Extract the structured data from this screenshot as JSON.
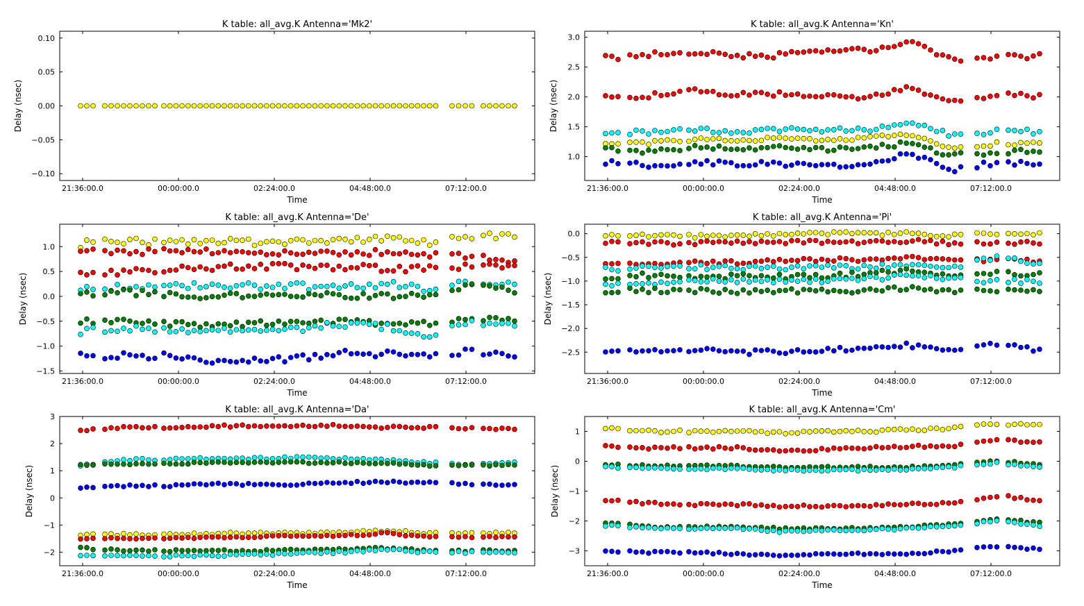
{
  "chart_data": [
    {
      "type": "scatter",
      "title": "K table: all_avg.K      Antenna='Mk2'",
      "xlabel": "Time",
      "ylabel": "Delay (nsec)",
      "xticks": [
        "21:36:00.0",
        "00:00:00.0",
        "02:24:00.0",
        "04:48:00.0",
        "07:12:00.0"
      ],
      "yticks": [
        "0.10",
        "0.05",
        "0.00",
        "−0.05",
        "−0.10"
      ],
      "ylim": [
        -0.11,
        0.11
      ],
      "series": [
        {
          "color": "#ffff00",
          "base": [
            0.0
          ],
          "amp": 0
        }
      ]
    },
    {
      "type": "scatter",
      "title": "K table: all_avg.K      Antenna='Kn'",
      "xlabel": "Time",
      "ylabel": "Delay (nsec)",
      "xticks": [
        "21:36:00.0",
        "00:00:00.0",
        "02:24:00.0",
        "04:48:00.0",
        "07:12:00.0"
      ],
      "yticks": [
        "3.0",
        "2.5",
        "2.0",
        "1.5",
        "1.0"
      ],
      "ylim": [
        0.6,
        3.1
      ],
      "series": [
        {
          "color": "#ff0000",
          "base": [
            2.65,
            2.7,
            2.75,
            2.7,
            2.7,
            2.75,
            2.78,
            2.95,
            2.6,
            2.65,
            2.7
          ],
          "amp": 0.05
        },
        {
          "color": "#ff0000",
          "base": [
            2.0,
            2.02,
            2.1,
            2.05,
            2.05,
            2.0,
            2.0,
            2.15,
            1.9,
            2.05,
            2.0
          ],
          "amp": 0.04
        },
        {
          "color": "#00ffff",
          "base": [
            1.42,
            1.4,
            1.45,
            1.42,
            1.45,
            1.45,
            1.45,
            1.58,
            1.35,
            1.42,
            1.42
          ],
          "amp": 0.04
        },
        {
          "color": "#ffff00",
          "base": [
            1.22,
            1.23,
            1.28,
            1.28,
            1.3,
            1.28,
            1.3,
            1.38,
            1.12,
            1.22,
            1.22
          ],
          "amp": 0.03
        },
        {
          "color": "#008000",
          "base": [
            1.12,
            1.08,
            1.15,
            1.15,
            1.15,
            1.12,
            1.15,
            1.22,
            1.02,
            1.08,
            1.1
          ],
          "amp": 0.04
        },
        {
          "color": "#0000ff",
          "base": [
            0.9,
            0.86,
            0.9,
            0.88,
            0.88,
            0.85,
            0.88,
            1.05,
            0.78,
            0.9,
            0.88
          ],
          "amp": 0.04
        }
      ]
    },
    {
      "type": "scatter",
      "title": "K table: all_avg.K      Antenna='De'",
      "xlabel": "Time",
      "ylabel": "Delay (nsec)",
      "xticks": [
        "21:36:00.0",
        "00:00:00.0",
        "02:24:00.0",
        "04:48:00.0",
        "07:12:00.0"
      ],
      "yticks": [
        "1.0",
        "0.5",
        "0.0",
        "−0.5",
        "−1.0",
        "−1.5"
      ],
      "ylim": [
        -1.55,
        1.45
      ],
      "series": [
        {
          "color": "#ffff00",
          "base": [
            1.05,
            1.1,
            1.1,
            1.15,
            1.1,
            1.12,
            1.15,
            1.15,
            1.1,
            1.2,
            1.2
          ],
          "amp": 0.08
        },
        {
          "color": "#ff0000",
          "base": [
            0.9,
            0.9,
            0.9,
            0.9,
            0.88,
            0.88,
            0.88,
            0.88,
            0.85,
            0.8,
            0.7
          ],
          "amp": 0.06
        },
        {
          "color": "#ff0000",
          "base": [
            0.5,
            0.5,
            0.55,
            0.58,
            0.58,
            0.6,
            0.6,
            0.55,
            0.55,
            0.6,
            0.55
          ],
          "amp": 0.07
        },
        {
          "color": "#00ffff",
          "base": [
            0.15,
            0.18,
            0.2,
            0.2,
            0.2,
            0.2,
            0.2,
            0.25,
            0.15,
            0.3,
            0.25
          ],
          "amp": 0.07
        },
        {
          "color": "#008000",
          "base": [
            0.05,
            0.08,
            0.05,
            0.0,
            0.0,
            0.0,
            0.02,
            0.0,
            0.0,
            0.25,
            0.1
          ],
          "amp": 0.06
        },
        {
          "color": "#008000",
          "base": [
            -0.5,
            -0.5,
            -0.55,
            -0.58,
            -0.55,
            -0.5,
            -0.5,
            -0.55,
            -0.55,
            -0.45,
            -0.5
          ],
          "amp": 0.05
        },
        {
          "color": "#00ffff",
          "base": [
            -0.7,
            -0.65,
            -0.65,
            -0.7,
            -0.72,
            -0.65,
            -0.55,
            -0.6,
            -0.8,
            -0.5,
            -0.62
          ],
          "amp": 0.07
        },
        {
          "color": "#0000ff",
          "base": [
            -1.2,
            -1.18,
            -1.2,
            -1.3,
            -1.3,
            -1.25,
            -1.15,
            -1.15,
            -1.2,
            -1.1,
            -1.18
          ],
          "amp": 0.07
        }
      ]
    },
    {
      "type": "scatter",
      "title": "K table: all_avg.K      Antenna='Pi'",
      "xlabel": "Time",
      "ylabel": "Delay (nsec)",
      "xticks": [
        "21:36:00.0",
        "00:00:00.0",
        "02:24:00.0",
        "04:48:00.0",
        "07:12:00.0"
      ],
      "yticks": [
        "0.0",
        "−0.5",
        "−1.0",
        "−1.5",
        "−2.0",
        "−2.5"
      ],
      "ylim": [
        -2.95,
        0.2
      ],
      "series": [
        {
          "color": "#ffff00",
          "base": [
            -0.05,
            -0.05,
            -0.05,
            -0.05,
            -0.02,
            0.0,
            0.0,
            0.0,
            -0.05,
            0.0,
            0.0
          ],
          "amp": 0.04
        },
        {
          "color": "#ff0000",
          "base": [
            -0.2,
            -0.2,
            -0.2,
            -0.18,
            -0.18,
            -0.18,
            -0.18,
            -0.15,
            -0.2,
            -0.2,
            -0.18
          ],
          "amp": 0.04
        },
        {
          "color": "#ff0000",
          "base": [
            -0.62,
            -0.62,
            -0.6,
            -0.6,
            -0.58,
            -0.55,
            -0.55,
            -0.5,
            -0.58,
            -0.55,
            -0.58
          ],
          "amp": 0.04
        },
        {
          "color": "#00ffff",
          "base": [
            -0.75,
            -0.72,
            -0.7,
            -0.72,
            -0.72,
            -0.7,
            -0.7,
            -0.65,
            -0.72,
            -0.5,
            -0.62
          ],
          "amp": 0.05
        },
        {
          "color": "#008000",
          "base": [
            -0.9,
            -0.88,
            -0.9,
            -0.9,
            -0.9,
            -0.88,
            -0.85,
            -0.8,
            -0.85,
            -0.85,
            -0.88
          ],
          "amp": 0.06
        },
        {
          "color": "#00ffff",
          "base": [
            -1.1,
            -1.05,
            -1.0,
            -1.0,
            -1.0,
            -0.98,
            -0.95,
            -0.9,
            -0.95,
            -1.0,
            -1.0
          ],
          "amp": 0.05
        },
        {
          "color": "#008000",
          "base": [
            -1.2,
            -1.2,
            -1.2,
            -1.22,
            -1.22,
            -1.2,
            -1.2,
            -1.15,
            -1.2,
            -1.22,
            -1.2
          ],
          "amp": 0.05
        },
        {
          "color": "#0000ff",
          "base": [
            -2.5,
            -2.5,
            -2.45,
            -2.5,
            -2.5,
            -2.45,
            -2.45,
            -2.35,
            -2.45,
            -2.35,
            -2.45
          ],
          "amp": 0.05
        }
      ]
    },
    {
      "type": "scatter",
      "title": "K table: all_avg.K      Antenna='Da'",
      "xlabel": "Time",
      "ylabel": "Delay (nsec)",
      "xticks": [
        "21:36:00.0",
        "00:00:00.0",
        "02:24:00.0",
        "04:48:00.0",
        "07:12:00.0"
      ],
      "yticks": [
        "3",
        "2",
        "1",
        "0",
        "−1",
        "−2"
      ],
      "ylim": [
        -2.5,
        3.0
      ],
      "series": [
        {
          "color": "#ff0000",
          "base": [
            2.5,
            2.6,
            2.6,
            2.65,
            2.65,
            2.65,
            2.68,
            2.6,
            2.6,
            2.55,
            2.55
          ],
          "amp": 0.04
        },
        {
          "color": "#00ffff",
          "base": [
            1.2,
            1.4,
            1.42,
            1.45,
            1.45,
            1.48,
            1.45,
            1.4,
            1.3,
            1.25,
            1.3
          ],
          "amp": 0.04
        },
        {
          "color": "#008000",
          "base": [
            1.2,
            1.25,
            1.25,
            1.3,
            1.3,
            1.3,
            1.3,
            1.28,
            1.2,
            1.2,
            1.2
          ],
          "amp": 0.03
        },
        {
          "color": "#0000ff",
          "base": [
            0.35,
            0.45,
            0.45,
            0.5,
            0.5,
            0.5,
            0.55,
            0.6,
            0.55,
            0.5,
            0.5
          ],
          "amp": 0.04
        },
        {
          "color": "#ffff00",
          "base": [
            -1.35,
            -1.35,
            -1.35,
            -1.32,
            -1.3,
            -1.3,
            -1.28,
            -1.2,
            -1.3,
            -1.3,
            -1.3
          ],
          "amp": 0.04
        },
        {
          "color": "#ff0000",
          "base": [
            -1.5,
            -1.5,
            -1.5,
            -1.45,
            -1.45,
            -1.4,
            -1.4,
            -1.3,
            -1.45,
            -1.45,
            -1.45
          ],
          "amp": 0.03
        },
        {
          "color": "#008000",
          "base": [
            -1.85,
            -1.95,
            -1.95,
            -1.95,
            -1.95,
            -1.9,
            -1.9,
            -1.85,
            -1.95,
            -1.95,
            -1.95
          ],
          "amp": 0.04
        },
        {
          "color": "#00ffff",
          "base": [
            -2.15,
            -2.15,
            -2.15,
            -2.12,
            -2.1,
            -2.05,
            -2.0,
            -1.9,
            -2.0,
            -2.0,
            -2.0
          ],
          "amp": 0.04
        }
      ]
    },
    {
      "type": "scatter",
      "title": "K table: all_avg.K      Antenna='Cm'",
      "xlabel": "Time",
      "ylabel": "Delay (nsec)",
      "xticks": [
        "21:36:00.0",
        "00:00:00.0",
        "02:24:00.0",
        "04:48:00.0",
        "07:12:00.0"
      ],
      "yticks": [
        "1",
        "0",
        "−1",
        "−2",
        "−3"
      ],
      "ylim": [
        -3.5,
        1.5
      ],
      "series": [
        {
          "color": "#ffff00",
          "base": [
            1.1,
            1.0,
            1.0,
            1.0,
            0.95,
            1.0,
            1.0,
            1.05,
            1.1,
            1.25,
            1.2
          ],
          "amp": 0.04
        },
        {
          "color": "#ff0000",
          "base": [
            0.5,
            0.45,
            0.45,
            0.45,
            0.35,
            0.4,
            0.45,
            0.5,
            0.5,
            0.7,
            0.65
          ],
          "amp": 0.04
        },
        {
          "color": "#008000",
          "base": [
            -0.12,
            -0.15,
            -0.15,
            -0.15,
            -0.2,
            -0.2,
            -0.2,
            -0.2,
            -0.12,
            0.0,
            -0.1
          ],
          "amp": 0.03
        },
        {
          "color": "#00ffff",
          "base": [
            -0.2,
            -0.25,
            -0.25,
            -0.25,
            -0.3,
            -0.3,
            -0.3,
            -0.28,
            -0.2,
            -0.05,
            -0.2
          ],
          "amp": 0.03
        },
        {
          "color": "#ff0000",
          "base": [
            -1.3,
            -1.4,
            -1.45,
            -1.45,
            -1.5,
            -1.5,
            -1.48,
            -1.45,
            -1.4,
            -1.15,
            -1.3
          ],
          "amp": 0.04
        },
        {
          "color": "#008000",
          "base": [
            -2.05,
            -2.2,
            -2.2,
            -2.2,
            -2.25,
            -2.25,
            -2.25,
            -2.2,
            -2.1,
            -1.95,
            -2.05
          ],
          "amp": 0.03
        },
        {
          "color": "#00ffff",
          "base": [
            -2.15,
            -2.25,
            -2.25,
            -2.25,
            -2.35,
            -2.3,
            -2.3,
            -2.25,
            -2.15,
            -2.0,
            -2.15
          ],
          "amp": 0.03
        },
        {
          "color": "#0000ff",
          "base": [
            -3.0,
            -3.05,
            -3.05,
            -3.1,
            -3.15,
            -3.1,
            -3.1,
            -3.1,
            -3.0,
            -2.85,
            -2.95
          ],
          "amp": 0.03
        }
      ]
    }
  ]
}
